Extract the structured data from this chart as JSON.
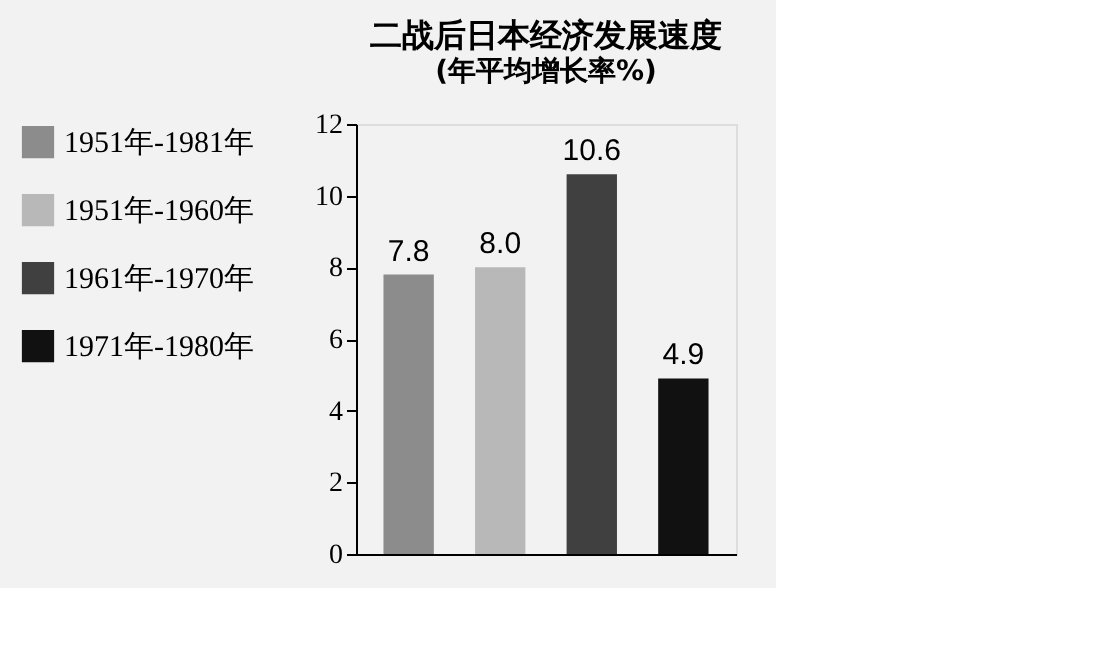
{
  "chart_data": {
    "type": "bar",
    "title": "二战后日本经济发展速度",
    "subtitle": "(年平均增长率%)",
    "categories": [
      null,
      null,
      null,
      null
    ],
    "series": [
      {
        "name": "1951年-1981年",
        "color": "#8c8c8c",
        "values": [
          7.8,
          null,
          null,
          null
        ],
        "value_labels": [
          "7.8",
          null,
          null,
          null
        ]
      },
      {
        "name": "1951年-1960年",
        "color": "#b8b8b8",
        "values": [
          null,
          8.0,
          null,
          null
        ],
        "value_labels": [
          null,
          "8.0",
          null,
          null
        ]
      },
      {
        "name": "1961年-1970年",
        "color": "#404040",
        "values": [
          null,
          null,
          10.6,
          null
        ],
        "value_labels": [
          null,
          null,
          "10.6",
          null
        ]
      },
      {
        "name": "1971年-1980年",
        "color": "#111111",
        "values": [
          null,
          null,
          null,
          4.9
        ],
        "value_labels": [
          null,
          null,
          null,
          "4.9"
        ]
      }
    ],
    "ylim": [
      0,
      12
    ],
    "yticks": [
      0,
      2,
      4,
      6,
      8,
      10,
      12
    ],
    "grid": false,
    "legend": "left"
  }
}
